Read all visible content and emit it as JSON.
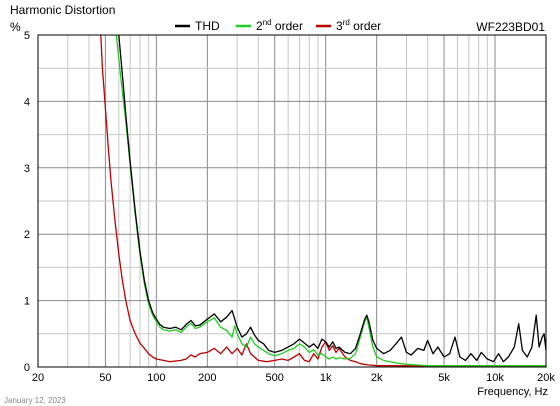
{
  "chart_data": {
    "type": "line",
    "title": "Harmonic Distortion",
    "ylabel": "%",
    "xlabel": "Frequency, Hz",
    "model": "WF223BD01",
    "footer_date": "January 12, 2023",
    "x_scale": "log",
    "xlim": [
      20,
      20000
    ],
    "ylim": [
      0,
      5
    ],
    "grid": true,
    "legend": "top",
    "x_ticks": [
      {
        "value": 20,
        "label": "20"
      },
      {
        "value": 50,
        "label": "50"
      },
      {
        "value": 100,
        "label": "100"
      },
      {
        "value": 200,
        "label": "200"
      },
      {
        "value": 500,
        "label": "500"
      },
      {
        "value": 1000,
        "label": "1k"
      },
      {
        "value": 2000,
        "label": "2k"
      },
      {
        "value": 5000,
        "label": "5k"
      },
      {
        "value": 10000,
        "label": "10k"
      },
      {
        "value": 20000,
        "label": "20k"
      }
    ],
    "y_ticks": [
      {
        "value": 0,
        "label": "0"
      },
      {
        "value": 1,
        "label": "1"
      },
      {
        "value": 2,
        "label": "2"
      },
      {
        "value": 3,
        "label": "3"
      },
      {
        "value": 4,
        "label": "4"
      },
      {
        "value": 5,
        "label": "5"
      }
    ],
    "series": [
      {
        "name": "THD",
        "name_main": "THD",
        "name_sup": "",
        "name_tail": "",
        "color": "#000000",
        "points": [
          [
            60,
            5.0
          ],
          [
            63,
            4.4
          ],
          [
            66,
            3.8
          ],
          [
            70,
            3.1
          ],
          [
            75,
            2.35
          ],
          [
            80,
            1.75
          ],
          [
            85,
            1.3
          ],
          [
            90,
            1.0
          ],
          [
            95,
            0.82
          ],
          [
            100,
            0.72
          ],
          [
            105,
            0.64
          ],
          [
            110,
            0.6
          ],
          [
            120,
            0.58
          ],
          [
            130,
            0.6
          ],
          [
            140,
            0.56
          ],
          [
            150,
            0.64
          ],
          [
            160,
            0.7
          ],
          [
            170,
            0.62
          ],
          [
            180,
            0.63
          ],
          [
            200,
            0.72
          ],
          [
            220,
            0.8
          ],
          [
            240,
            0.68
          ],
          [
            260,
            0.75
          ],
          [
            280,
            0.85
          ],
          [
            300,
            0.6
          ],
          [
            320,
            0.45
          ],
          [
            340,
            0.5
          ],
          [
            360,
            0.6
          ],
          [
            380,
            0.48
          ],
          [
            400,
            0.4
          ],
          [
            430,
            0.35
          ],
          [
            460,
            0.25
          ],
          [
            500,
            0.22
          ],
          [
            550,
            0.25
          ],
          [
            600,
            0.3
          ],
          [
            650,
            0.35
          ],
          [
            700,
            0.42
          ],
          [
            750,
            0.36
          ],
          [
            800,
            0.3
          ],
          [
            850,
            0.35
          ],
          [
            900,
            0.28
          ],
          [
            950,
            0.42
          ],
          [
            1000,
            0.38
          ],
          [
            1050,
            0.3
          ],
          [
            1100,
            0.38
          ],
          [
            1150,
            0.28
          ],
          [
            1200,
            0.3
          ],
          [
            1300,
            0.22
          ],
          [
            1400,
            0.2
          ],
          [
            1500,
            0.28
          ],
          [
            1600,
            0.5
          ],
          [
            1700,
            0.72
          ],
          [
            1750,
            0.78
          ],
          [
            1800,
            0.68
          ],
          [
            1900,
            0.4
          ],
          [
            2000,
            0.28
          ],
          [
            2200,
            0.2
          ],
          [
            2400,
            0.25
          ],
          [
            2600,
            0.35
          ],
          [
            2800,
            0.45
          ],
          [
            3000,
            0.22
          ],
          [
            3200,
            0.18
          ],
          [
            3500,
            0.28
          ],
          [
            3800,
            0.25
          ],
          [
            4000,
            0.4
          ],
          [
            4300,
            0.2
          ],
          [
            4600,
            0.3
          ],
          [
            5000,
            0.15
          ],
          [
            5400,
            0.2
          ],
          [
            5800,
            0.45
          ],
          [
            6200,
            0.15
          ],
          [
            6700,
            0.1
          ],
          [
            7200,
            0.2
          ],
          [
            7800,
            0.1
          ],
          [
            8300,
            0.22
          ],
          [
            9000,
            0.12
          ],
          [
            9800,
            0.08
          ],
          [
            10500,
            0.2
          ],
          [
            11200,
            0.08
          ],
          [
            12000,
            0.15
          ],
          [
            13000,
            0.3
          ],
          [
            13800,
            0.65
          ],
          [
            14500,
            0.25
          ],
          [
            15500,
            0.15
          ],
          [
            16500,
            0.3
          ],
          [
            17500,
            0.78
          ],
          [
            18200,
            0.3
          ],
          [
            19000,
            0.45
          ],
          [
            19500,
            0.5
          ],
          [
            20000,
            0.25
          ]
        ]
      },
      {
        "name": "2nd order",
        "name_main": "2",
        "name_sup": "nd",
        "name_tail": " order",
        "color": "#22cc22",
        "points": [
          [
            58,
            5.0
          ],
          [
            62,
            4.3
          ],
          [
            66,
            3.7
          ],
          [
            70,
            3.05
          ],
          [
            75,
            2.3
          ],
          [
            80,
            1.7
          ],
          [
            85,
            1.25
          ],
          [
            90,
            0.95
          ],
          [
            95,
            0.78
          ],
          [
            100,
            0.68
          ],
          [
            105,
            0.6
          ],
          [
            110,
            0.56
          ],
          [
            120,
            0.54
          ],
          [
            130,
            0.56
          ],
          [
            140,
            0.52
          ],
          [
            150,
            0.6
          ],
          [
            160,
            0.66
          ],
          [
            170,
            0.58
          ],
          [
            180,
            0.6
          ],
          [
            200,
            0.68
          ],
          [
            220,
            0.74
          ],
          [
            240,
            0.6
          ],
          [
            260,
            0.55
          ],
          [
            280,
            0.45
          ],
          [
            290,
            0.62
          ],
          [
            300,
            0.5
          ],
          [
            320,
            0.35
          ],
          [
            340,
            0.3
          ],
          [
            360,
            0.45
          ],
          [
            380,
            0.35
          ],
          [
            400,
            0.3
          ],
          [
            430,
            0.25
          ],
          [
            460,
            0.2
          ],
          [
            500,
            0.17
          ],
          [
            550,
            0.2
          ],
          [
            600,
            0.25
          ],
          [
            650,
            0.28
          ],
          [
            700,
            0.35
          ],
          [
            750,
            0.3
          ],
          [
            800,
            0.22
          ],
          [
            850,
            0.26
          ],
          [
            900,
            0.18
          ],
          [
            950,
            0.2
          ],
          [
            1000,
            0.15
          ],
          [
            1050,
            0.12
          ],
          [
            1100,
            0.15
          ],
          [
            1150,
            0.12
          ],
          [
            1200,
            0.14
          ],
          [
            1300,
            0.12
          ],
          [
            1400,
            0.13
          ],
          [
            1500,
            0.2
          ],
          [
            1600,
            0.45
          ],
          [
            1700,
            0.68
          ],
          [
            1750,
            0.75
          ],
          [
            1800,
            0.6
          ],
          [
            1900,
            0.3
          ],
          [
            2000,
            0.15
          ],
          [
            2200,
            0.1
          ],
          [
            2400,
            0.08
          ],
          [
            2600,
            0.06
          ],
          [
            2800,
            0.05
          ],
          [
            3000,
            0.04
          ],
          [
            3500,
            0.03
          ],
          [
            4000,
            0.02
          ],
          [
            5000,
            0.02
          ],
          [
            20000,
            0.02
          ]
        ]
      },
      {
        "name": "3rd order",
        "name_main": "3",
        "name_sup": "rd",
        "name_tail": " order",
        "color": "#bb0000",
        "points": [
          [
            47,
            5.0
          ],
          [
            48,
            4.5
          ],
          [
            50,
            3.9
          ],
          [
            52,
            3.3
          ],
          [
            54,
            2.8
          ],
          [
            57,
            2.2
          ],
          [
            60,
            1.7
          ],
          [
            63,
            1.3
          ],
          [
            66,
            1.0
          ],
          [
            70,
            0.7
          ],
          [
            75,
            0.5
          ],
          [
            80,
            0.36
          ],
          [
            85,
            0.28
          ],
          [
            90,
            0.2
          ],
          [
            95,
            0.15
          ],
          [
            100,
            0.12
          ],
          [
            110,
            0.1
          ],
          [
            120,
            0.08
          ],
          [
            130,
            0.09
          ],
          [
            140,
            0.1
          ],
          [
            150,
            0.12
          ],
          [
            160,
            0.18
          ],
          [
            170,
            0.15
          ],
          [
            180,
            0.2
          ],
          [
            200,
            0.22
          ],
          [
            220,
            0.28
          ],
          [
            240,
            0.2
          ],
          [
            260,
            0.3
          ],
          [
            280,
            0.2
          ],
          [
            300,
            0.28
          ],
          [
            320,
            0.18
          ],
          [
            340,
            0.35
          ],
          [
            360,
            0.2
          ],
          [
            380,
            0.15
          ],
          [
            400,
            0.1
          ],
          [
            450,
            0.08
          ],
          [
            500,
            0.1
          ],
          [
            550,
            0.12
          ],
          [
            600,
            0.1
          ],
          [
            650,
            0.15
          ],
          [
            700,
            0.2
          ],
          [
            750,
            0.1
          ],
          [
            800,
            0.08
          ],
          [
            850,
            0.2
          ],
          [
            900,
            0.12
          ],
          [
            950,
            0.3
          ],
          [
            1000,
            0.38
          ],
          [
            1050,
            0.25
          ],
          [
            1100,
            0.32
          ],
          [
            1150,
            0.22
          ],
          [
            1200,
            0.28
          ],
          [
            1300,
            0.15
          ],
          [
            1400,
            0.1
          ],
          [
            1500,
            0.08
          ],
          [
            1600,
            0.05
          ],
          [
            1800,
            0.03
          ],
          [
            2000,
            0.02
          ],
          [
            2500,
            0.02
          ],
          [
            5000,
            0.01
          ],
          [
            20000,
            0.01
          ]
        ]
      }
    ]
  }
}
